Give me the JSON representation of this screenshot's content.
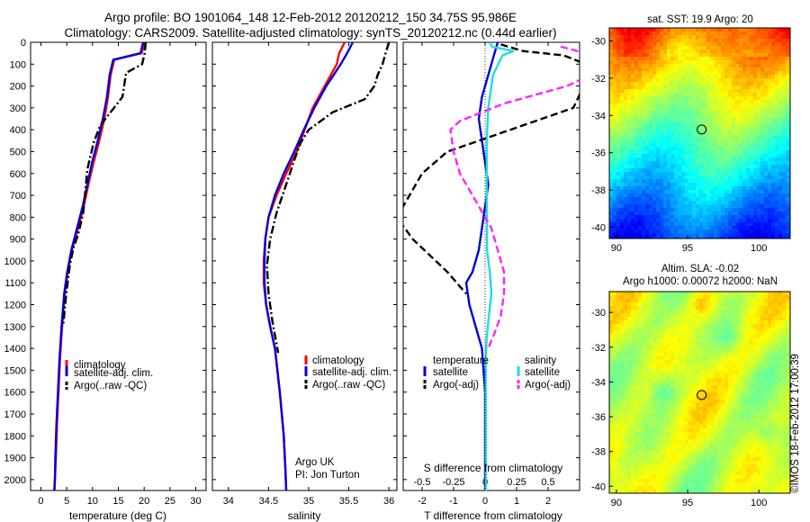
{
  "titles": {
    "line1": "Argo profile: BO 1901064_148 12-Feb-2012 20120212_150 34.75S 95.986E",
    "line2": "Climatology: CARS2009. Satellite-adjusted climatology: synTS_20120212.nc (0.44d earlier)"
  },
  "colors": {
    "climatology": "#ff0000",
    "satellite": "#0000dd",
    "argo": "#000000",
    "sat_salinity": "#22dddd",
    "argo_salinity": "#ff22ff"
  },
  "depth_axis": {
    "ylim": [
      0,
      2050
    ],
    "ticks": [
      0,
      100,
      200,
      300,
      400,
      500,
      600,
      700,
      800,
      900,
      1000,
      1100,
      1200,
      1300,
      1400,
      1500,
      1600,
      1700,
      1800,
      1900,
      2000
    ]
  },
  "chart_data": [
    {
      "type": "line",
      "xlabel": "temperature (deg C)",
      "xlim": [
        -2,
        32
      ],
      "xticks": [
        0,
        5,
        10,
        15,
        20,
        25,
        30
      ],
      "legend": {
        "position": "bottom-right",
        "entries": [
          "climatology",
          "satellite-adj. clim.",
          "Argo(..raw -QC)"
        ]
      },
      "series": [
        {
          "name": "climatology",
          "style": "solid",
          "color": "#ff0000",
          "x": [
            20.2,
            19.5,
            14.2,
            13.5,
            13.0,
            12.3,
            11.3,
            10.2,
            9.2,
            8.3,
            7.2,
            6.0,
            5.2,
            4.6,
            4.1,
            3.7,
            3.4,
            3.1,
            2.9,
            2.7,
            2.6
          ],
          "y": [
            0,
            50,
            80,
            150,
            250,
            350,
            450,
            550,
            650,
            750,
            850,
            950,
            1050,
            1150,
            1300,
            1450,
            1600,
            1750,
            1900,
            2000,
            2050
          ]
        },
        {
          "name": "satellite-adj. clim.",
          "style": "solid",
          "color": "#0000dd",
          "x": [
            19.8,
            19.3,
            14.0,
            13.3,
            12.8,
            12.0,
            11.0,
            9.9,
            9.0,
            8.1,
            7.0,
            5.9,
            5.1,
            4.5,
            4.0,
            3.6,
            3.3,
            3.0,
            2.8,
            2.7,
            2.6
          ],
          "y": [
            0,
            50,
            80,
            150,
            250,
            350,
            450,
            550,
            650,
            750,
            850,
            950,
            1050,
            1150,
            1300,
            1450,
            1600,
            1750,
            1900,
            2000,
            2050
          ]
        },
        {
          "name": "Argo(..raw -QC)",
          "style": "dashdot",
          "color": "#000000",
          "x": [
            20.3,
            20.1,
            19.6,
            16.5,
            15.8,
            13.5,
            11.5,
            10.2,
            9.0,
            8.2,
            7.2,
            6.3,
            5.6,
            4.9,
            4.3
          ],
          "y": [
            0,
            50,
            100,
            140,
            250,
            320,
            380,
            460,
            580,
            780,
            880,
            940,
            1020,
            1150,
            1300
          ]
        }
      ]
    },
    {
      "type": "line",
      "xlabel": "salinity",
      "xlim": [
        33.8,
        36.1
      ],
      "xticks": [
        34,
        34.5,
        35,
        35.5,
        36
      ],
      "legend": {
        "position": "bottom-right",
        "entries": [
          "climatology",
          "satellite-adj. clim.",
          "Argo(..raw -QC)"
        ]
      },
      "annotation": {
        "line1": "Argo UK",
        "line2": "PI: Jon Turton"
      },
      "series": [
        {
          "name": "climatology",
          "style": "solid",
          "color": "#ff0000",
          "x": [
            35.45,
            35.38,
            35.35,
            35.2,
            35.05,
            34.95,
            34.85,
            34.72,
            34.6,
            34.5,
            34.46,
            34.44,
            34.44,
            34.47,
            34.52,
            34.58,
            34.64,
            34.69,
            34.71,
            34.72
          ],
          "y": [
            0,
            50,
            100,
            200,
            300,
            400,
            500,
            600,
            700,
            800,
            900,
            1000,
            1100,
            1200,
            1300,
            1400,
            1600,
            1800,
            1950,
            2050
          ]
        },
        {
          "name": "satellite-adj. clim.",
          "style": "solid",
          "color": "#0000dd",
          "x": [
            35.55,
            35.48,
            35.4,
            35.22,
            35.07,
            34.94,
            34.82,
            34.69,
            34.58,
            34.5,
            34.46,
            34.45,
            34.45,
            34.47,
            34.52,
            34.58,
            34.64,
            34.69,
            34.71,
            34.72
          ],
          "y": [
            0,
            50,
            100,
            200,
            300,
            400,
            500,
            600,
            700,
            800,
            900,
            1000,
            1100,
            1200,
            1300,
            1400,
            1600,
            1800,
            1950,
            2050
          ]
        },
        {
          "name": "Argo(..raw -QC)",
          "style": "dashdot",
          "color": "#000000",
          "x": [
            36.0,
            35.96,
            35.92,
            35.86,
            35.82,
            35.7,
            35.3,
            35.0,
            34.9,
            34.82,
            34.72,
            34.6,
            34.52,
            34.48,
            34.5,
            34.55,
            34.62
          ],
          "y": [
            0,
            50,
            100,
            150,
            200,
            260,
            320,
            400,
            460,
            540,
            650,
            780,
            900,
            1020,
            1150,
            1280,
            1420
          ]
        }
      ]
    },
    {
      "type": "line",
      "xlabel": "T difference from climatology",
      "xlabel_top": "S difference from climatology",
      "xlim": [
        -2.6,
        3.0
      ],
      "xticks": [
        -2,
        -1,
        0,
        1,
        2
      ],
      "xticks_top": [
        -0.5,
        -0.25,
        0,
        0.25,
        0.5
      ],
      "legend": {
        "position": "bottom",
        "temperature_header": "temperature",
        "salinity_header": "salinity",
        "entries": [
          "satellite",
          "Argo(-adj)",
          "satellite",
          "Argo(-adj)"
        ]
      },
      "series": [
        {
          "name": "satellite",
          "group": "temperature",
          "style": "solid",
          "color": "#0000dd",
          "x": [
            0.4,
            0.3,
            0.1,
            -0.1,
            -0.2,
            -0.1,
            0.0,
            0.1,
            0.0,
            -0.1,
            -0.2,
            -0.4,
            -0.6,
            -0.5,
            -0.3,
            -0.1,
            0.0,
            0.0,
            0.0,
            0.0
          ],
          "y": [
            0,
            50,
            150,
            250,
            350,
            450,
            550,
            650,
            750,
            850,
            950,
            1050,
            1100,
            1200,
            1300,
            1400,
            1600,
            1800,
            1950,
            2050
          ]
        },
        {
          "name": "Argo(-adj)",
          "group": "temperature",
          "style": "dashed",
          "color": "#000000",
          "x": [
            0.5,
            1.2,
            2.5,
            3.2,
            3.2,
            2.8,
            0.8,
            -1.2,
            -2.0,
            -2.8,
            -2.3,
            -1.2,
            -0.6
          ],
          "y": [
            10,
            40,
            60,
            100,
            180,
            300,
            400,
            500,
            600,
            800,
            900,
            1050,
            1150
          ]
        },
        {
          "name": "satellite",
          "group": "salinity",
          "style": "solid",
          "color": "#22dddd",
          "x": [
            0.15,
            0.22,
            0.9,
            0.55,
            0.25,
            0.1,
            0.05,
            0.05,
            0.05,
            0.06,
            0.06,
            0.15,
            0.2,
            0.12,
            0.05,
            0.02,
            0.02,
            0.02,
            0.02
          ],
          "y": [
            0,
            20,
            40,
            60,
            150,
            300,
            450,
            600,
            750,
            850,
            950,
            1050,
            1150,
            1250,
            1350,
            1450,
            1600,
            1800,
            2050
          ]
        },
        {
          "name": "Argo(-adj)",
          "group": "salinity",
          "style": "dashed",
          "color": "#ff22ff",
          "x": [
            2.4,
            3.2,
            3.4,
            3.5,
            3.6,
            2.6,
            0.6,
            -0.8,
            -1.1,
            -1.0,
            -0.8,
            -0.4,
            0.2,
            0.4,
            0.6,
            0.6,
            0.5,
            0.3,
            0.1
          ],
          "y": [
            20,
            50,
            80,
            100,
            130,
            200,
            280,
            360,
            400,
            500,
            600,
            700,
            850,
            950,
            1050,
            1150,
            1250,
            1330,
            1400
          ]
        }
      ]
    },
    {
      "type": "heatmap",
      "title": "sat. SST: 19.9 Argo: 20",
      "xlim": [
        89.5,
        102.2
      ],
      "ylim": [
        -40.6,
        -29.3
      ],
      "xticks": [
        90,
        95,
        100
      ],
      "yticks": [
        -30,
        -32,
        -34,
        -36,
        -38,
        -40
      ],
      "marker": {
        "lon": 95.986,
        "lat": -34.75
      }
    },
    {
      "type": "heatmap",
      "title": "Altim. SLA: -0.02",
      "subtitle": "Argo h1000: 0.00072 h2000: NaN",
      "xlim": [
        89.5,
        102.2
      ],
      "ylim": [
        -40.4,
        -28.8
      ],
      "xticks": [
        90,
        95,
        100
      ],
      "yticks": [
        -30,
        -32,
        -34,
        -36,
        -38,
        -40
      ],
      "marker": {
        "lon": 95.986,
        "lat": -34.75
      }
    }
  ],
  "credit": "©IMOS 18-Feb-2012 17:00:39"
}
